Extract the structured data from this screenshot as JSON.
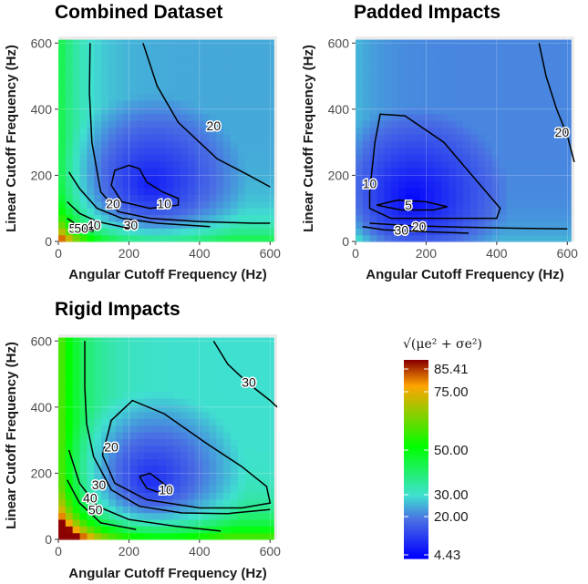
{
  "chart_data": [
    {
      "type": "heatmap",
      "title": "Combined Dataset",
      "xlabel": "Angular Cutoff Frequency (Hz)",
      "ylabel": "Linear Cutoff Frequency (Hz)",
      "xlim": [
        0,
        620
      ],
      "ylim": [
        0,
        620
      ],
      "xticks": [
        0,
        200,
        400,
        600
      ],
      "yticks": [
        0,
        200,
        400,
        600
      ],
      "field": {
        "min_at": [
          260,
          170
        ],
        "min_value": 7,
        "corner_value": 60,
        "far_value": 25
      },
      "contours": [
        {
          "level": 5,
          "label": "5",
          "points": [
            [
              40,
              45
            ],
            [
              60,
              40
            ],
            [
              80,
              35
            ],
            [
              100,
              30
            ]
          ],
          "label_at": [
            40,
            40
          ]
        },
        {
          "level": 10,
          "label": "10",
          "points": [
            [
              200,
              230
            ],
            [
              230,
              220
            ],
            [
              250,
              180
            ],
            [
              295,
              150
            ],
            [
              340,
              130
            ],
            [
              340,
              110
            ],
            [
              260,
              100
            ],
            [
              180,
              120
            ],
            [
              150,
              170
            ],
            [
              160,
              215
            ],
            [
              200,
              230
            ]
          ],
          "label_at": [
            300,
            115
          ]
        },
        {
          "level": 20,
          "label": "20",
          "points": [
            [
              90,
              600
            ],
            [
              88,
              450
            ],
            [
              95,
              300
            ],
            [
              120,
              150
            ],
            [
              170,
              90
            ],
            [
              260,
              70
            ],
            [
              400,
              60
            ],
            [
              550,
              55
            ],
            [
              600,
              55
            ]
          ],
          "label_at": [
            155,
            115
          ]
        },
        {
          "level": 20,
          "label": "20",
          "points": [
            [
              240,
              600
            ],
            [
              280,
              470
            ],
            [
              340,
              360
            ],
            [
              450,
              250
            ],
            [
              540,
              200
            ],
            [
              600,
              165
            ]
          ],
          "label_at": [
            440,
            350
          ]
        },
        {
          "level": 30,
          "label": "30",
          "points": [
            [
              30,
              210
            ],
            [
              60,
              160
            ],
            [
              110,
              100
            ],
            [
              180,
              70
            ],
            [
              280,
              55
            ],
            [
              430,
              45
            ]
          ],
          "label_at": [
            205,
            50
          ]
        },
        {
          "level": 40,
          "label": "40",
          "points": [
            [
              25,
              120
            ],
            [
              60,
              85
            ],
            [
              110,
              60
            ],
            [
              200,
              40
            ]
          ],
          "label_at": [
            100,
            50
          ]
        },
        {
          "level": 50,
          "label": "50",
          "points": [
            [
              25,
              70
            ],
            [
              60,
              45
            ],
            [
              100,
              35
            ]
          ],
          "label_at": [
            65,
            40
          ]
        }
      ],
      "contour_labels": [
        "5",
        "10",
        "20",
        "20",
        "30",
        "40",
        "50"
      ]
    },
    {
      "type": "heatmap",
      "title": "Padded Impacts",
      "xlabel": "Angular Cutoff Frequency (Hz)",
      "ylabel": "Linear Cutoff Frequency (Hz)",
      "xlim": [
        0,
        620
      ],
      "ylim": [
        0,
        620
      ],
      "xticks": [
        0,
        200,
        400,
        600
      ],
      "yticks": [
        0,
        200,
        400,
        600
      ],
      "field": {
        "min_at": [
          160,
          130
        ],
        "min_value": 4.43,
        "corner_value": 30,
        "far_value": 22
      },
      "contours": [
        {
          "level": 5,
          "label": "5",
          "points": [
            [
              60,
              110
            ],
            [
              120,
              125
            ],
            [
              200,
              120
            ],
            [
              260,
              105
            ],
            [
              220,
              95
            ],
            [
              130,
              95
            ],
            [
              60,
              110
            ]
          ],
          "label_at": [
            150,
            110
          ]
        },
        {
          "level": 10,
          "label": "10",
          "points": [
            [
              40,
              150
            ],
            [
              55,
              300
            ],
            [
              70,
              385
            ],
            [
              140,
              380
            ],
            [
              250,
              300
            ],
            [
              330,
              200
            ],
            [
              410,
              100
            ],
            [
              400,
              70
            ],
            [
              250,
              70
            ],
            [
              100,
              70
            ],
            [
              40,
              100
            ],
            [
              40,
              150
            ]
          ],
          "label_at": [
            40,
            175
          ]
        },
        {
          "level": 20,
          "label": "20",
          "points": [
            [
              40,
              55
            ],
            [
              150,
              48
            ],
            [
              300,
              43
            ],
            [
              450,
              40
            ],
            [
              600,
              38
            ]
          ],
          "label_at": [
            180,
            45
          ]
        },
        {
          "level": 30,
          "label": "30",
          "points": [
            [
              20,
              45
            ],
            [
              80,
              35
            ],
            [
              180,
              30
            ],
            [
              320,
              25
            ]
          ],
          "label_at": [
            130,
            35
          ]
        },
        {
          "level": 20,
          "label": "20",
          "points": [
            [
              520,
              600
            ],
            [
              540,
              500
            ],
            [
              570,
              400
            ],
            [
              600,
              320
            ],
            [
              620,
              240
            ]
          ],
          "label_at": [
            585,
            330
          ]
        }
      ],
      "contour_labels": [
        "5",
        "10",
        "20",
        "30",
        "20"
      ]
    },
    {
      "type": "heatmap",
      "title": "Rigid Impacts",
      "xlabel": "Angular Cutoff Frequency (Hz)",
      "ylabel": "Linear Cutoff Frequency (Hz)",
      "xlim": [
        0,
        620
      ],
      "ylim": [
        0,
        620
      ],
      "xticks": [
        0,
        200,
        400,
        600
      ],
      "yticks": [
        0,
        200,
        400,
        600
      ],
      "field": {
        "min_at": [
          260,
          175
        ],
        "min_value": 8,
        "corner_value": 85.41,
        "far_value": 30
      },
      "contours": [
        {
          "level": 10,
          "label": "10",
          "points": [
            [
              230,
              190
            ],
            [
              260,
              200
            ],
            [
              290,
              175
            ],
            [
              320,
              150
            ],
            [
              290,
              140
            ],
            [
              250,
              155
            ],
            [
              230,
              190
            ]
          ],
          "label_at": [
            305,
            150
          ]
        },
        {
          "level": 20,
          "label": "20",
          "points": [
            [
              125,
              255
            ],
            [
              150,
              360
            ],
            [
              210,
              420
            ],
            [
              300,
              380
            ],
            [
              420,
              290
            ],
            [
              520,
              220
            ],
            [
              590,
              160
            ],
            [
              600,
              110
            ],
            [
              520,
              95
            ],
            [
              400,
              95
            ],
            [
              250,
              120
            ],
            [
              160,
              170
            ],
            [
              125,
              255
            ]
          ],
          "label_at": [
            150,
            280
          ]
        },
        {
          "level": 30,
          "label": "30",
          "points": [
            [
              75,
              600
            ],
            [
              75,
              460
            ],
            [
              80,
              350
            ],
            [
              100,
              250
            ],
            [
              150,
              150
            ],
            [
              230,
              100
            ],
            [
              350,
              80
            ],
            [
              480,
              78
            ],
            [
              600,
              90
            ]
          ],
          "label_at": [
            115,
            165
          ]
        },
        {
          "level": 30,
          "label": "30",
          "points": [
            [
              440,
              600
            ],
            [
              480,
              530
            ],
            [
              540,
              470
            ],
            [
              600,
              420
            ],
            [
              620,
              400
            ]
          ],
          "label_at": [
            540,
            475
          ]
        },
        {
          "level": 40,
          "label": "40",
          "points": [
            [
              30,
              270
            ],
            [
              60,
              170
            ],
            [
              110,
              100
            ],
            [
              200,
              60
            ],
            [
              330,
              40
            ],
            [
              460,
              25
            ]
          ],
          "label_at": [
            90,
            125
          ]
        },
        {
          "level": 50,
          "label": "50",
          "points": [
            [
              25,
              180
            ],
            [
              60,
              110
            ],
            [
              120,
              50
            ],
            [
              220,
              30
            ]
          ],
          "label_at": [
            105,
            90
          ]
        }
      ],
      "contour_labels": [
        "10",
        "20",
        "30",
        "30",
        "40",
        "50"
      ]
    }
  ],
  "legend": {
    "title": "√(μe² + σe²)",
    "min": 4.43,
    "max": 85.41,
    "ticks": [
      {
        "value": 85.41,
        "label": "85.41"
      },
      {
        "value": 75.0,
        "label": "75.00"
      },
      {
        "value": 50.0,
        "label": "50.00"
      },
      {
        "value": 30.0,
        "label": "30.00"
      },
      {
        "value": 20.0,
        "label": "20.00"
      },
      {
        "value": 4.43,
        "label": "4.43"
      }
    ],
    "colors": [
      "#0000ff",
      "#4a6fe3",
      "#40e0d0",
      "#00ff00",
      "#ffa500",
      "#8b0000"
    ]
  }
}
